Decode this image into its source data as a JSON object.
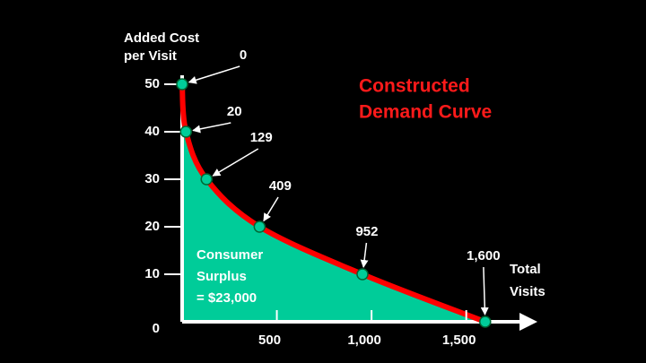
{
  "chart_data": {
    "type": "area",
    "title": [
      "Constructed",
      "Demand Curve"
    ],
    "y_label": [
      "Added Cost",
      "per Visit"
    ],
    "x_label": [
      "Total",
      "Visits"
    ],
    "annotation": [
      "Consumer",
      "Surplus",
      "=  $23,000"
    ],
    "x": [
      0,
      20,
      129,
      409,
      952,
      1600
    ],
    "values": [
      50,
      40,
      30,
      20,
      10,
      0
    ],
    "x_labels": [
      "0",
      "20",
      "129",
      "409",
      "952",
      "1,600"
    ],
    "line_color": "#ff0000",
    "fill_color": "#00cc99",
    "xlim": [
      0,
      1800
    ],
    "ylim": [
      0,
      50
    ],
    "xticks": [
      500,
      {
        "value": 1000,
        "label": "1,000"
      },
      {
        "value": 1500,
        "label": "1,500"
      }
    ],
    "yticks": [
      0,
      10,
      20,
      30,
      40,
      50
    ]
  }
}
